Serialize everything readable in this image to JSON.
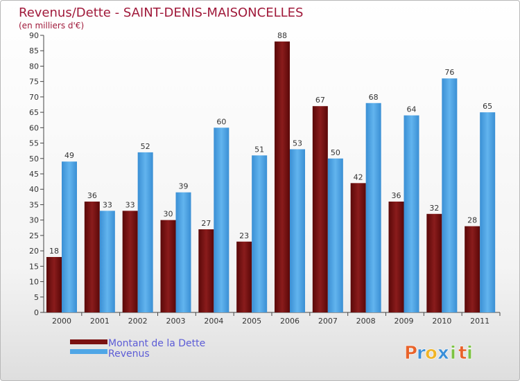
{
  "chart_data": {
    "type": "bar",
    "title": "Revenus/Dette - SAINT-DENIS-MAISONCELLES",
    "subtitle": "(en milliers d'€)",
    "categories": [
      "2000",
      "2001",
      "2002",
      "2003",
      "2004",
      "2005",
      "2006",
      "2007",
      "2008",
      "2009",
      "2010",
      "2011"
    ],
    "series": [
      {
        "name": "Montant de la Dette",
        "color": "#7a1010",
        "values": [
          18,
          36,
          33,
          30,
          27,
          23,
          88,
          67,
          42,
          36,
          32,
          28
        ]
      },
      {
        "name": "Revenus",
        "color": "#4fa6e6",
        "values": [
          49,
          33,
          52,
          39,
          60,
          51,
          53,
          50,
          68,
          64,
          76,
          65
        ]
      }
    ],
    "ylim": [
      0,
      90
    ],
    "ytick_step": 5,
    "grid": false,
    "legend_position": "bottom-left"
  },
  "logo": {
    "letters": [
      {
        "ch": "P",
        "color": "#e8632b"
      },
      {
        "ch": "r",
        "color": "#3a8fd8"
      },
      {
        "ch": "o",
        "color": "#f0b428"
      },
      {
        "ch": "x",
        "color": "#3a8fd8"
      },
      {
        "ch": "i",
        "color": "#7cc242"
      },
      {
        "ch": "t",
        "color": "#e8632b"
      },
      {
        "ch": "i",
        "color": "#7cc242"
      }
    ]
  }
}
